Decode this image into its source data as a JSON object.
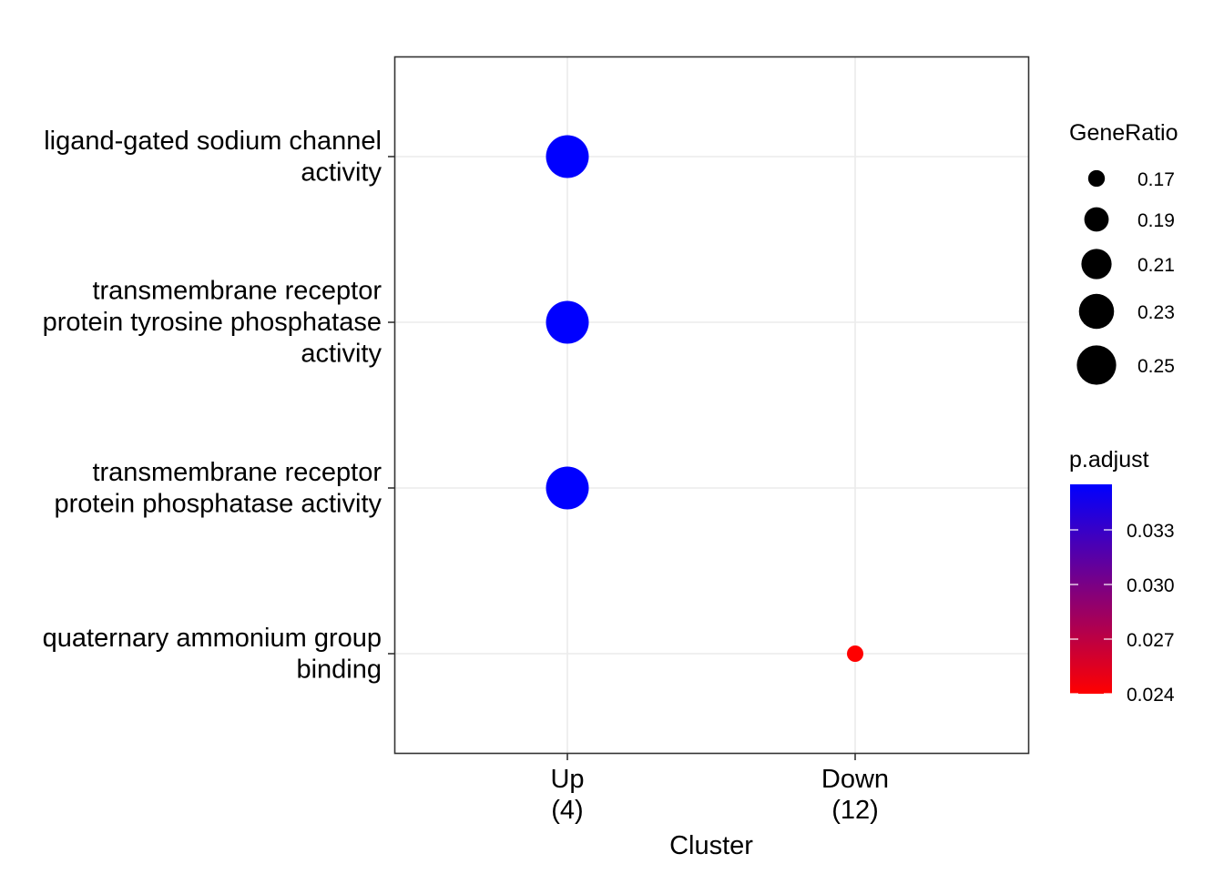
{
  "chart_data": {
    "type": "scatter",
    "xlabel": "Cluster",
    "ylabel": "",
    "x_categories": [
      {
        "line1": "Up",
        "line2": "(4)"
      },
      {
        "line1": "Down",
        "line2": "(12)"
      }
    ],
    "y_categories": [
      {
        "id": "ligand",
        "lines": [
          "ligand-gated sodium channel",
          "activity"
        ]
      },
      {
        "id": "tyrosine",
        "lines": [
          "transmembrane receptor",
          "protein tyrosine phosphatase",
          "activity"
        ]
      },
      {
        "id": "phosphatase",
        "lines": [
          "transmembrane receptor",
          "protein phosphatase activity"
        ]
      },
      {
        "id": "quaternary",
        "lines": [
          "quaternary ammonium group",
          "binding"
        ]
      }
    ],
    "points": [
      {
        "x": "Up",
        "y": "ligand",
        "GeneRatio": 0.25,
        "p_adjust": 0.0355
      },
      {
        "x": "Up",
        "y": "tyrosine",
        "GeneRatio": 0.25,
        "p_adjust": 0.0355
      },
      {
        "x": "Up",
        "y": "phosphatase",
        "GeneRatio": 0.25,
        "p_adjust": 0.0355
      },
      {
        "x": "Down",
        "y": "quaternary",
        "GeneRatio": 0.1667,
        "p_adjust": 0.024
      }
    ],
    "size_legend": {
      "title": "GeneRatio",
      "values": [
        0.17,
        0.19,
        0.21,
        0.23,
        0.25
      ],
      "labels": [
        "0.17",
        "0.19",
        "0.21",
        "0.23",
        "0.25"
      ]
    },
    "color_legend": {
      "title": "p.adjust",
      "range": [
        0.024,
        0.0355
      ],
      "ticks": [
        0.024,
        0.027,
        0.03,
        0.033
      ],
      "tick_labels": [
        "0.024",
        "0.027",
        "0.030",
        "0.033"
      ],
      "low_color": "#FF0000",
      "high_color": "#0000FF"
    },
    "grid": true,
    "legend_position": "right"
  }
}
